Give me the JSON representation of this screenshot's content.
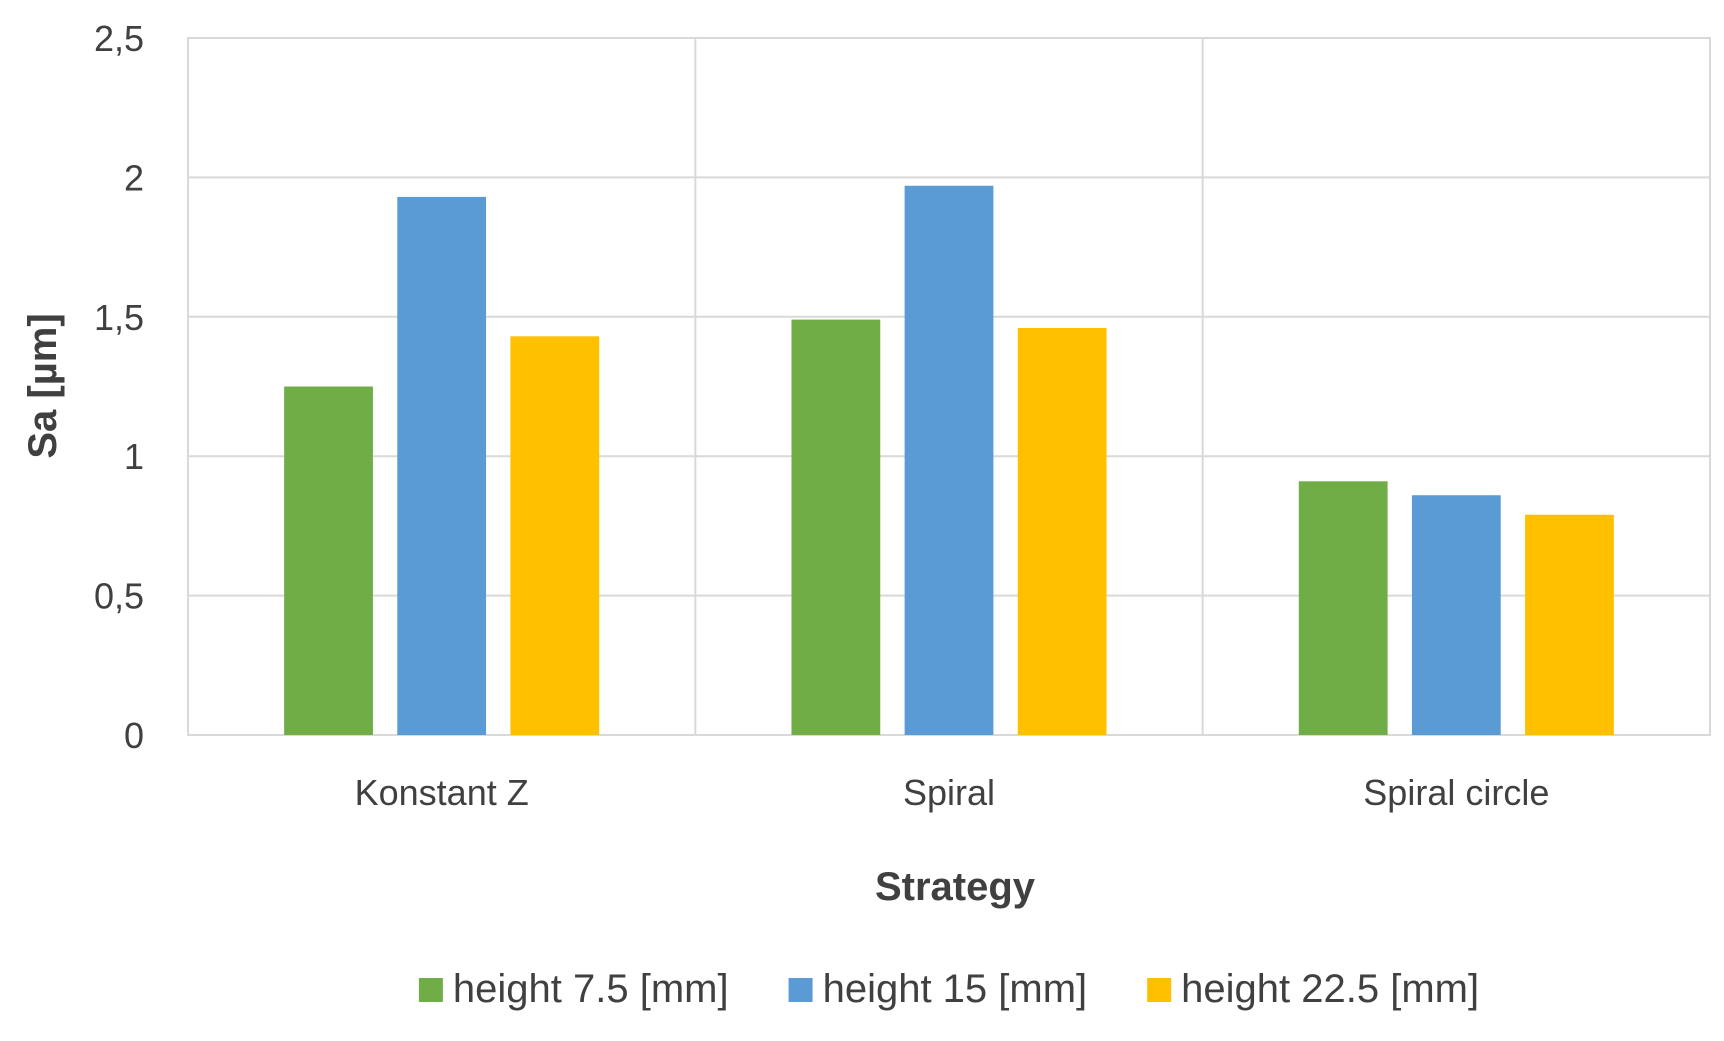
{
  "chart_data": {
    "type": "bar",
    "title": "",
    "xlabel": "Strategy",
    "ylabel": "Sa [µm]",
    "categories": [
      "Konstant Z",
      "Spiral",
      "Spiral circle"
    ],
    "ylim": [
      0,
      2.5
    ],
    "yticks": [
      0,
      0.5,
      1,
      1.5,
      2,
      2.5
    ],
    "ytick_labels": [
      "0",
      "0,5",
      "1",
      "1,5",
      "2",
      "2,5"
    ],
    "grid": true,
    "legend_position": "bottom",
    "series": [
      {
        "name": "height 7.5 [mm]",
        "color": "#70ad47",
        "values": [
          1.25,
          1.49,
          0.91
        ]
      },
      {
        "name": "height 15 [mm]",
        "color": "#5b9bd5",
        "values": [
          1.93,
          1.97,
          0.86
        ]
      },
      {
        "name": "height 22.5 [mm]",
        "color": "#ffc000",
        "values": [
          1.43,
          1.46,
          0.79
        ]
      }
    ]
  }
}
